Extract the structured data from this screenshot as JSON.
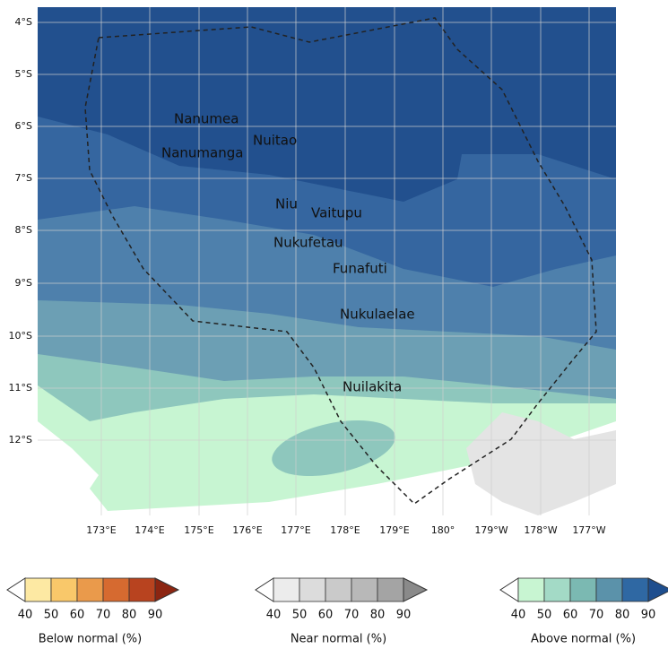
{
  "map": {
    "lat_labels": [
      "4°S",
      "5°S",
      "6°S",
      "7°S",
      "8°S",
      "9°S",
      "10°S",
      "11°S",
      "12°S"
    ],
    "lon_labels": [
      "173°E",
      "174°E",
      "175°E",
      "176°E",
      "177°E",
      "178°E",
      "179°E",
      "180°",
      "179°W",
      "178°W",
      "177°W"
    ],
    "places": [
      "Nanumea",
      "Nuitao",
      "Nanumanga",
      "Niu",
      "Vaitupu",
      "Nukufetau",
      "Funafuti",
      "Nukulaelae",
      "Nuilakita"
    ]
  },
  "legends": [
    {
      "title": "Below normal (%)",
      "ticks": [
        40,
        50,
        60,
        70,
        80,
        90
      ],
      "colors": [
        "#fde9a3",
        "#f9c86a",
        "#ea9a4b",
        "#d66a30",
        "#b8431f",
        "#8c2511"
      ]
    },
    {
      "title": "Near normal (%)",
      "ticks": [
        40,
        50,
        60,
        70,
        80,
        90
      ],
      "colors": [
        "#ececec",
        "#dcdcdc",
        "#cacaca",
        "#b8b8b8",
        "#a4a4a4",
        "#8a8a8a"
      ]
    },
    {
      "title": "Above normal (%)",
      "ticks": [
        40,
        50,
        60,
        70,
        80,
        90
      ],
      "colors": [
        "#c8f5d2",
        "#a3dac6",
        "#7bb9b2",
        "#5b92aa",
        "#2f68a3",
        "#1e4e8e"
      ]
    }
  ]
}
